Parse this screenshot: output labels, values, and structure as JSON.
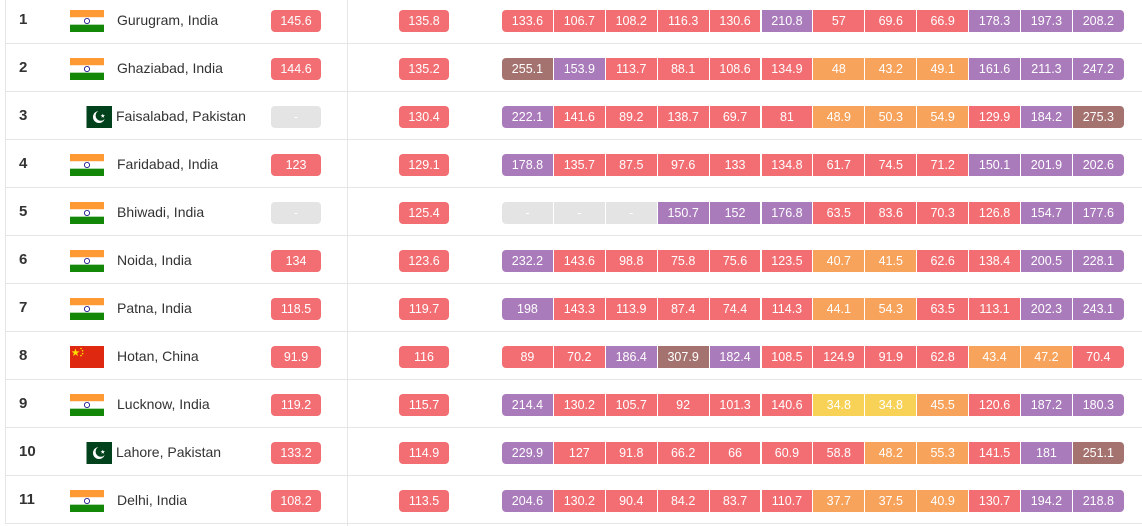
{
  "colors": {
    "red": "#f26e73",
    "purple": "#a97bba",
    "maroon": "#a5736f",
    "orange": "#f7a35c",
    "yellow": "#f7d257",
    "gray": "#e4e4e4"
  },
  "flags": {
    "india": "india-flag-icon",
    "pakistan": "pakistan-flag-icon",
    "china": "china-flag-icon"
  },
  "rows": [
    {
      "rank": "1",
      "country": "india",
      "city": "Gurugram, India",
      "avg2023": "145.6",
      "avg2024": "135.8",
      "months": [
        "133.6",
        "106.7",
        "108.2",
        "116.3",
        "130.6",
        "210.8",
        "57",
        "69.6",
        "66.9",
        "178.3",
        "197.3",
        "208.2"
      ],
      "colors": [
        "red",
        "red",
        "red",
        "red",
        "red",
        "purple",
        "red",
        "red",
        "red",
        "purple",
        "purple",
        "purple"
      ]
    },
    {
      "rank": "2",
      "country": "india",
      "city": "Ghaziabad, India",
      "avg2023": "144.6",
      "avg2024": "135.2",
      "months": [
        "255.1",
        "153.9",
        "113.7",
        "88.1",
        "108.6",
        "134.9",
        "48",
        "43.2",
        "49.1",
        "161.6",
        "211.3",
        "247.2"
      ],
      "colors": [
        "maroon",
        "purple",
        "red",
        "red",
        "red",
        "red",
        "orange",
        "orange",
        "orange",
        "purple",
        "purple",
        "purple"
      ]
    },
    {
      "rank": "3",
      "country": "pakistan",
      "city": "Faisalabad, Pakistan",
      "avg2023": "-",
      "avg2024": "130.4",
      "months": [
        "222.1",
        "141.6",
        "89.2",
        "138.7",
        "69.7",
        "81",
        "48.9",
        "50.3",
        "54.9",
        "129.9",
        "184.2",
        "275.3"
      ],
      "colors": [
        "purple",
        "red",
        "red",
        "red",
        "red",
        "red",
        "orange",
        "orange",
        "orange",
        "red",
        "purple",
        "maroon"
      ]
    },
    {
      "rank": "4",
      "country": "india",
      "city": "Faridabad, India",
      "avg2023": "123",
      "avg2024": "129.1",
      "months": [
        "178.8",
        "135.7",
        "87.5",
        "97.6",
        "133",
        "134.8",
        "61.7",
        "74.5",
        "71.2",
        "150.1",
        "201.9",
        "202.6"
      ],
      "colors": [
        "purple",
        "red",
        "red",
        "red",
        "red",
        "red",
        "red",
        "red",
        "red",
        "purple",
        "purple",
        "purple"
      ]
    },
    {
      "rank": "5",
      "country": "india",
      "city": "Bhiwadi, India",
      "avg2023": "-",
      "avg2024": "125.4",
      "months": [
        "-",
        "-",
        "-",
        "150.7",
        "152",
        "176.8",
        "63.5",
        "83.6",
        "70.3",
        "126.8",
        "154.7",
        "177.6"
      ],
      "colors": [
        "gray",
        "gray",
        "gray",
        "purple",
        "purple",
        "purple",
        "red",
        "red",
        "red",
        "red",
        "purple",
        "purple"
      ]
    },
    {
      "rank": "6",
      "country": "india",
      "city": "Noida, India",
      "avg2023": "134",
      "avg2024": "123.6",
      "months": [
        "232.2",
        "143.6",
        "98.8",
        "75.8",
        "75.6",
        "123.5",
        "40.7",
        "41.5",
        "62.6",
        "138.4",
        "200.5",
        "228.1"
      ],
      "colors": [
        "purple",
        "red",
        "red",
        "red",
        "red",
        "red",
        "orange",
        "orange",
        "red",
        "red",
        "purple",
        "purple"
      ]
    },
    {
      "rank": "7",
      "country": "india",
      "city": "Patna, India",
      "avg2023": "118.5",
      "avg2024": "119.7",
      "months": [
        "198",
        "143.3",
        "113.9",
        "87.4",
        "74.4",
        "114.3",
        "44.1",
        "54.3",
        "63.5",
        "113.1",
        "202.3",
        "243.1"
      ],
      "colors": [
        "purple",
        "red",
        "red",
        "red",
        "red",
        "red",
        "orange",
        "orange",
        "red",
        "red",
        "purple",
        "purple"
      ]
    },
    {
      "rank": "8",
      "country": "china",
      "city": "Hotan, China",
      "avg2023": "91.9",
      "avg2024": "116",
      "months": [
        "89",
        "70.2",
        "186.4",
        "307.9",
        "182.4",
        "108.5",
        "124.9",
        "91.9",
        "62.8",
        "43.4",
        "47.2",
        "70.4"
      ],
      "colors": [
        "red",
        "red",
        "purple",
        "maroon",
        "purple",
        "red",
        "red",
        "red",
        "red",
        "orange",
        "orange",
        "red"
      ]
    },
    {
      "rank": "9",
      "country": "india",
      "city": "Lucknow, India",
      "avg2023": "119.2",
      "avg2024": "115.7",
      "months": [
        "214.4",
        "130.2",
        "105.7",
        "92",
        "101.3",
        "140.6",
        "34.8",
        "34.8",
        "45.5",
        "120.6",
        "187.2",
        "180.3"
      ],
      "colors": [
        "purple",
        "red",
        "red",
        "red",
        "red",
        "red",
        "yellow",
        "yellow",
        "orange",
        "red",
        "purple",
        "purple"
      ]
    },
    {
      "rank": "10",
      "country": "pakistan",
      "city": "Lahore, Pakistan",
      "avg2023": "133.2",
      "avg2024": "114.9",
      "months": [
        "229.9",
        "127",
        "91.8",
        "66.2",
        "66",
        "60.9",
        "58.8",
        "48.2",
        "55.3",
        "141.5",
        "181",
        "251.1"
      ],
      "colors": [
        "purple",
        "red",
        "red",
        "red",
        "red",
        "red",
        "red",
        "orange",
        "orange",
        "red",
        "purple",
        "maroon"
      ]
    },
    {
      "rank": "11",
      "country": "india",
      "city": "Delhi, India",
      "avg2023": "108.2",
      "avg2024": "113.5",
      "months": [
        "204.6",
        "130.2",
        "90.4",
        "84.2",
        "83.7",
        "110.7",
        "37.7",
        "37.5",
        "40.9",
        "130.7",
        "194.2",
        "218.8"
      ],
      "colors": [
        "purple",
        "red",
        "red",
        "red",
        "red",
        "red",
        "orange",
        "orange",
        "orange",
        "red",
        "purple",
        "purple"
      ]
    }
  ]
}
